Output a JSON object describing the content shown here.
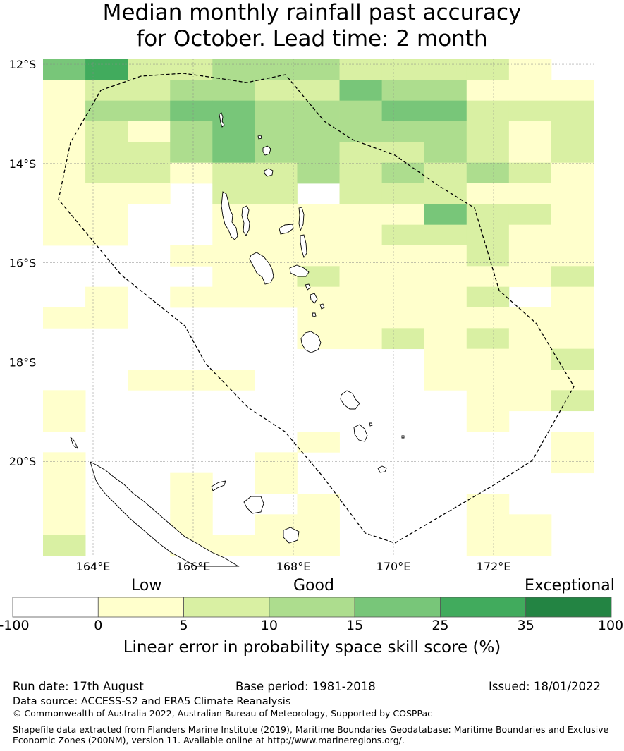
{
  "title": {
    "line1": "Median monthly rainfall past accuracy",
    "line2": "for October. Lead time: 2 month"
  },
  "map": {
    "lat_labels": [
      "12°S",
      "14°S",
      "16°S",
      "18°S",
      "20°S"
    ],
    "lon_labels": [
      "164°E",
      "166°E",
      "168°E",
      "170°E",
      "172°E"
    ],
    "lat_values": [
      -12,
      -14,
      -16,
      -18,
      -20
    ],
    "lon_values": [
      164,
      166,
      168,
      170,
      172
    ],
    "lon_range": [
      163,
      174
    ],
    "lat_range": [
      -21.9,
      -11.9
    ],
    "grid": true,
    "boundary_style": "dashed",
    "skill_grid": [
      "4522333222210",
      "1223322433111",
      "1334433344222",
      "1213433333212",
      "1223433223212",
      "1221223232321",
      "1110220222111",
      "1100111114221",
      "1100111122211",
      "0001111111211",
      "0000112111112",
      "0101111111201",
      "1100001111111",
      "0000001121211",
      "0000000001112",
      "0011100001111",
      "1000000000112",
      "1000000000100",
      "0000001000001",
      "1000010000001",
      "1001010000000",
      "1001001000100",
      "1001011000110",
      "2001111000110"
    ]
  },
  "colorbar": {
    "category_labels": [
      "Low",
      "Good",
      "Exceptional"
    ],
    "ticks": [
      "-100",
      "0",
      "5",
      "10",
      "15",
      "25",
      "35",
      "100"
    ],
    "colors": [
      "#ffffff",
      "#ffffcc",
      "#d9f0a3",
      "#addd8e",
      "#78c679",
      "#41ab5d",
      "#238443"
    ],
    "title": "Linear error in probability space skill score (%)"
  },
  "footer": {
    "run_date": "Run date: 17th August",
    "base_period": "Base period: 1981-2018",
    "issued": "Issued: 18/01/2022",
    "data_source": "Data source: ACCESS-S2 and ERA5 Climate Reanalysis",
    "copyright": "© Commonwealth of Australia 2022, Australian Bureau of Meteorology, Supported by COSPPac",
    "shapefile_line1": "Shapefile data extracted from Flanders Marine Institute (2019), Maritime Boundaries Geodatabase: Maritime Boundaries and Exclusive",
    "shapefile_line2": "Economic Zones (200NM), version 11. Available online at http://www.marineregions.org/."
  }
}
